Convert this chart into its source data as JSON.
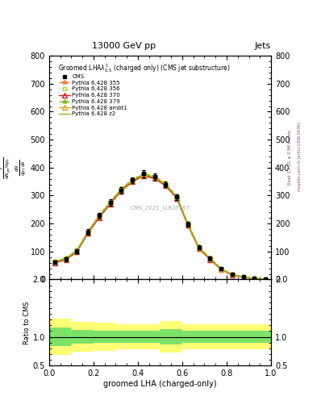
{
  "title_top": "13000 GeV pp",
  "title_right": "Jets",
  "plot_title": "Groomed LHA$\\lambda^1_{0.5}$ (charged only) (CMS jet substructure)",
  "xlabel": "groomed LHA (charged-only)",
  "ylabel_main_lines": [
    "mathrm d^2N",
    "mathrm d p_T mathrm d lambda"
  ],
  "ylabel_ratio": "Ratio to CMS",
  "watermark": "CMS_2021_I1920187",
  "right_label": "Rivet 3.1.10, ≥ 2.5M events",
  "right_label2": "mcplots.cern.ch [arXiv:1306.3436]",
  "ylim_main": [
    0,
    800
  ],
  "ylim_ratio": [
    0.5,
    2.0
  ],
  "xlim": [
    0,
    1
  ],
  "x_data": [
    0.025,
    0.075,
    0.125,
    0.175,
    0.225,
    0.275,
    0.325,
    0.375,
    0.425,
    0.475,
    0.525,
    0.575,
    0.625,
    0.675,
    0.725,
    0.775,
    0.825,
    0.875,
    0.925,
    0.975
  ],
  "cms_data": [
    62,
    72,
    100,
    170,
    228,
    275,
    318,
    355,
    378,
    368,
    340,
    295,
    198,
    115,
    75,
    38,
    18,
    9,
    4,
    1
  ],
  "cms_errors": [
    6,
    6,
    7,
    9,
    10,
    11,
    11,
    11,
    12,
    12,
    11,
    10,
    9,
    7,
    6,
    5,
    3,
    2,
    1,
    1
  ],
  "pythia355_data": [
    63,
    73,
    102,
    168,
    224,
    272,
    320,
    352,
    374,
    364,
    338,
    293,
    196,
    112,
    73,
    36,
    17,
    8,
    4,
    1
  ],
  "pythia356_data": [
    65,
    75,
    104,
    171,
    227,
    275,
    323,
    355,
    377,
    367,
    341,
    296,
    199,
    115,
    76,
    38,
    18,
    9,
    4,
    1
  ],
  "pythia370_data": [
    60,
    70,
    99,
    165,
    221,
    269,
    317,
    349,
    371,
    361,
    335,
    290,
    194,
    110,
    71,
    35,
    16,
    8,
    3,
    1
  ],
  "pythia379_data": [
    66,
    76,
    105,
    172,
    229,
    277,
    325,
    357,
    379,
    369,
    343,
    298,
    201,
    117,
    77,
    39,
    19,
    9,
    4,
    1
  ],
  "pythia_ambt1_data": [
    64,
    74,
    103,
    170,
    226,
    274,
    322,
    354,
    376,
    366,
    340,
    295,
    198,
    114,
    75,
    37,
    18,
    9,
    4,
    1
  ],
  "pythia_z2_data": [
    64,
    74,
    103,
    170,
    226,
    274,
    321,
    353,
    375,
    365,
    339,
    294,
    197,
    113,
    74,
    37,
    17,
    8,
    4,
    1
  ],
  "color_355": "#e8823c",
  "color_356": "#b8cc44",
  "color_370": "#cc2222",
  "color_379": "#88bb22",
  "color_ambt1": "#ddaa22",
  "color_z2": "#aaaa00",
  "color_cms": "#000000",
  "ratio_x_edges": [
    0.0,
    0.1,
    0.2,
    0.3,
    0.4,
    0.5,
    0.6,
    0.7,
    0.8,
    0.9,
    1.0
  ],
  "ratio_yellow_lo": [
    0.68,
    0.74,
    0.76,
    0.78,
    0.78,
    0.73,
    0.78,
    0.78,
    0.78,
    0.78
  ],
  "ratio_yellow_hi": [
    1.32,
    1.26,
    1.24,
    1.22,
    1.22,
    1.27,
    1.22,
    1.22,
    1.22,
    1.22
  ],
  "ratio_green_lo": [
    0.84,
    0.88,
    0.89,
    0.9,
    0.9,
    0.87,
    0.9,
    0.9,
    0.9,
    0.9
  ],
  "ratio_green_hi": [
    1.16,
    1.12,
    1.11,
    1.1,
    1.1,
    1.13,
    1.1,
    1.1,
    1.1,
    1.1
  ]
}
